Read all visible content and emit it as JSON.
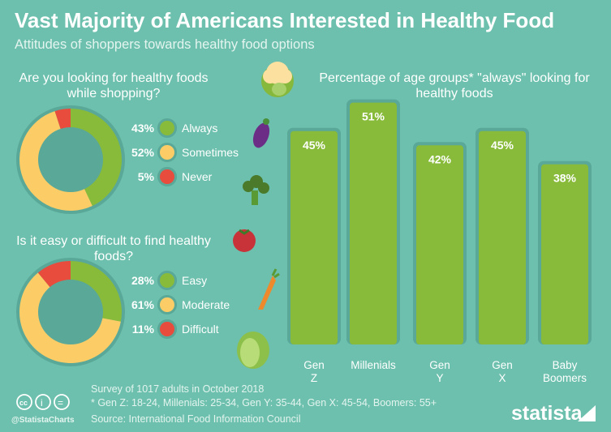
{
  "title": "Vast Majority of Americans Interested in Healthy Food",
  "subtitle": "Attitudes of shoppers towards healthy food options",
  "colors": {
    "background": "#6cc0ad",
    "green": "#88bb3a",
    "yellow": "#fccd66",
    "red": "#e84c3d",
    "border": "#5aa898"
  },
  "chart_data": [
    {
      "type": "pie",
      "title": "Are you looking for healthy foods while shopping?",
      "categories": [
        "Always",
        "Sometimes",
        "Never"
      ],
      "values": [
        43,
        52,
        5
      ],
      "labels": [
        "43%",
        "52%",
        "5%"
      ],
      "colors": [
        "#88bb3a",
        "#fccd66",
        "#e84c3d"
      ]
    },
    {
      "type": "pie",
      "title": "Is it easy or difficult to find healthy foods?",
      "categories": [
        "Easy",
        "Moderate",
        "Difficult"
      ],
      "values": [
        28,
        61,
        11
      ],
      "labels": [
        "28%",
        "61%",
        "11%"
      ],
      "colors": [
        "#88bb3a",
        "#fccd66",
        "#e84c3d"
      ]
    },
    {
      "type": "bar",
      "title": "Percentage of age groups* \"always\" looking for healthy foods",
      "categories": [
        "Gen Z",
        "Millenials",
        "Gen Y",
        "Gen X",
        "Baby Boomers"
      ],
      "values": [
        45,
        51,
        42,
        45,
        38
      ],
      "labels": [
        "45%",
        "51%",
        "42%",
        "45%",
        "38%"
      ],
      "color": "#88bb3a"
    }
  ],
  "footer": {
    "survey": "Survey of 1017 adults in October 2018",
    "note": "* Gen Z: 18-24, Millenials: 25-34, Gen Y: 35-44, Gen X: 45-54, Boomers: 55+",
    "source": "Source: International Food Information Council",
    "handle": "@StatistaCharts",
    "brand": "statista"
  },
  "icons": [
    "cauliflower-icon",
    "eggplant-icon",
    "broccoli-icon",
    "tomato-icon",
    "carrot-icon",
    "lettuce-icon",
    "cc-license-icon"
  ]
}
